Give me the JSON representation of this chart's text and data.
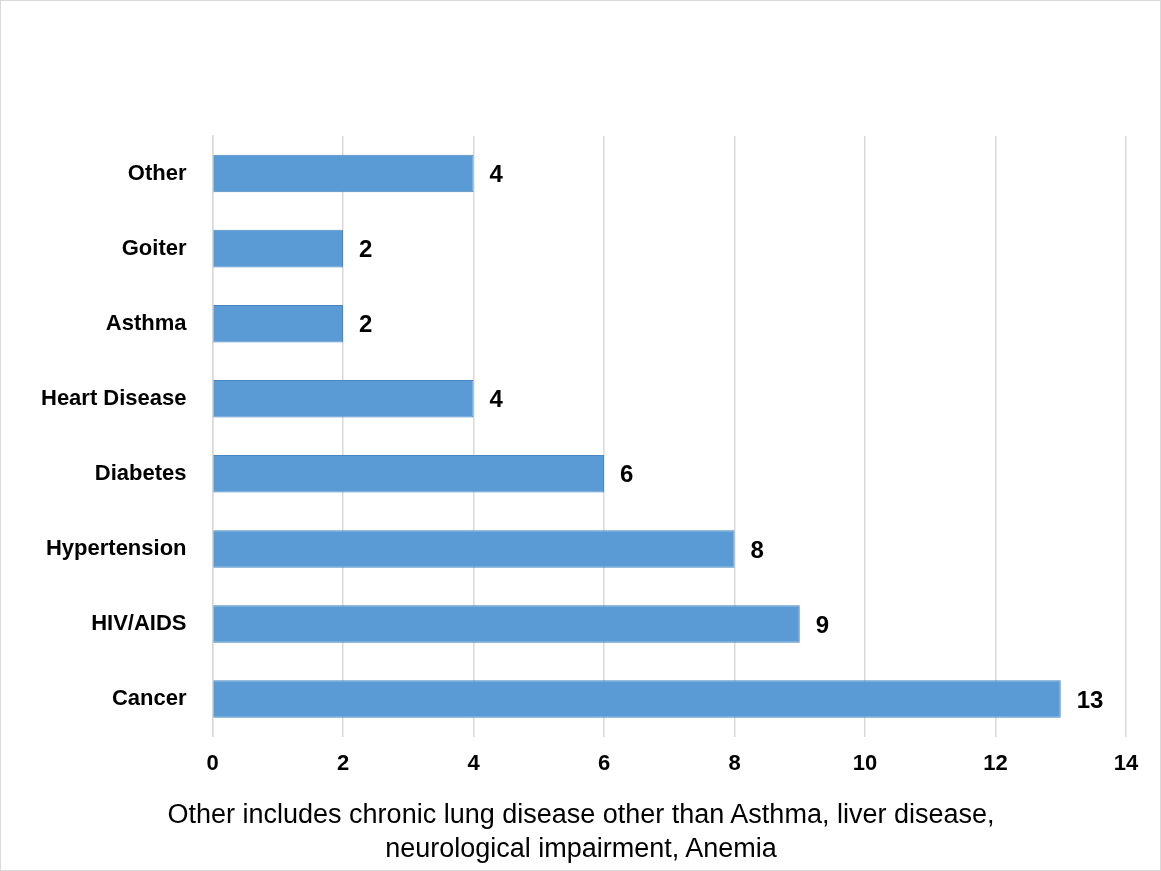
{
  "chart_data": {
    "type": "bar",
    "orientation": "horizontal",
    "categories": [
      "Other",
      "Goiter",
      "Asthma",
      "Heart Disease",
      "Diabetes",
      "Hypertension",
      "HIV/AIDS",
      "Cancer"
    ],
    "values": [
      4,
      2,
      2,
      4,
      6,
      8,
      9,
      13
    ],
    "color": "#5b9bd5",
    "xlim": [
      0,
      14
    ],
    "xticks": [
      0,
      2,
      4,
      6,
      8,
      10,
      12,
      14
    ],
    "grid": "x",
    "data_labels": true,
    "legend": false,
    "annotations": [
      "Other includes chronic lung disease other than Asthma, liver disease, neurological impairment, Anemia"
    ]
  }
}
